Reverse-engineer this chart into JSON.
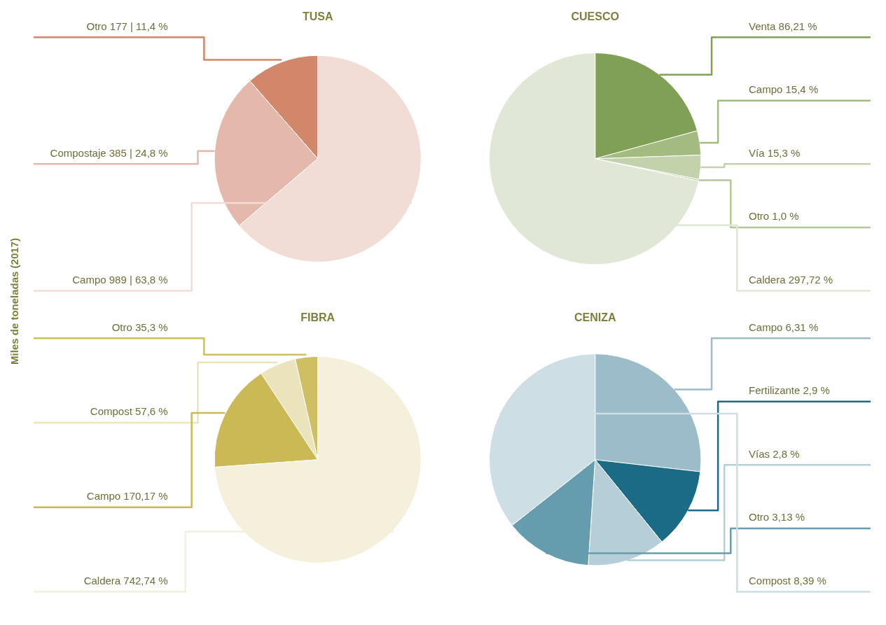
{
  "chart_data": [
    {
      "type": "pie",
      "title": "TUSA",
      "ylabel": "Miles de toneladas (2017)",
      "categories": [
        "Otro",
        "Compostaje",
        "Campo"
      ],
      "values": [
        177,
        385,
        989
      ],
      "value_labels": [
        "177 | 11,4 %",
        "385 | 24,8 %",
        "989 | 63,8 %"
      ],
      "colors": [
        "#d2866a",
        "#e4b8aa",
        "#f1ddd5"
      ]
    },
    {
      "type": "pie",
      "title": "CUESCO",
      "categories": [
        "Venta",
        "Campo",
        "Vía",
        "Otro",
        "Caldera"
      ],
      "values": [
        86.21,
        15.4,
        15.3,
        1.0,
        297.72
      ],
      "value_labels": [
        "86,21 %",
        "15,4 %",
        "15,3 %",
        "1,0 %",
        "297,72 %"
      ],
      "colors": [
        "#80a155",
        "#a3bb80",
        "#c2d3ab",
        "#b3c896",
        "#e0e7d6"
      ]
    },
    {
      "type": "pie",
      "title": "FIBRA",
      "categories": [
        "Otro",
        "Compost",
        "Campo",
        "Caldera"
      ],
      "values": [
        35.3,
        57.6,
        170.17,
        742.74
      ],
      "value_labels": [
        "35,3 %",
        "57,6 %",
        "170,17 %",
        "742,74 %"
      ],
      "colors": [
        "#cfbf63",
        "#ebe3bc",
        "#cbb955",
        "#f4f0dc"
      ]
    },
    {
      "type": "pie",
      "title": "CENIZA",
      "categories": [
        "Campo",
        "Fertilizante",
        "Vías",
        "Otro",
        "Compost"
      ],
      "values": [
        6.31,
        2.9,
        2.8,
        3.13,
        8.39
      ],
      "value_labels": [
        "6,31 %",
        "2,9 %",
        "2,8 %",
        "3,13 %",
        "8,39 %"
      ],
      "colors": [
        "#9bbcc8",
        "#1b6a86",
        "#b5ced7",
        "#659dae",
        "#cddee5"
      ]
    }
  ]
}
